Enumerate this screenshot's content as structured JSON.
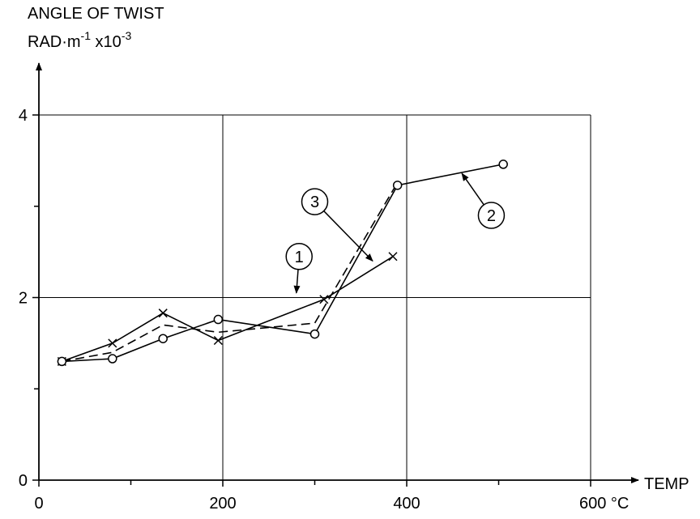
{
  "chart_data": {
    "type": "line",
    "ylabel_line1": "ANGLE OF TWIST",
    "ylabel_unit_base": "RAD·m",
    "ylabel_unit_exp": "-1",
    "ylabel_unit_mult": " x10",
    "ylabel_unit_mult_exp": "-3",
    "xlabel": "TEMP",
    "xlim": [
      0,
      600
    ],
    "ylim": [
      0,
      4
    ],
    "x_ticks": [
      {
        "value": 0,
        "label": "0"
      },
      {
        "value": 200,
        "label": "200"
      },
      {
        "value": 400,
        "label": "400"
      },
      {
        "value": 600,
        "label": "600 °C"
      }
    ],
    "y_ticks": [
      {
        "value": 0,
        "label": "0"
      },
      {
        "value": 2,
        "label": "2"
      },
      {
        "value": 4,
        "label": "4"
      }
    ],
    "grid": true,
    "series": [
      {
        "name": "1",
        "marker": "x",
        "dash": "solid",
        "points": [
          [
            25,
            1.3
          ],
          [
            80,
            1.5
          ],
          [
            135,
            1.83
          ],
          [
            195,
            1.53
          ],
          [
            310,
            1.98
          ],
          [
            385,
            2.45
          ]
        ]
      },
      {
        "name": "2",
        "marker": "o",
        "dash": "solid",
        "points": [
          [
            25,
            1.3
          ],
          [
            80,
            1.33
          ],
          [
            135,
            1.55
          ],
          [
            195,
            1.76
          ],
          [
            300,
            1.6
          ],
          [
            390,
            3.23
          ],
          [
            505,
            3.46
          ]
        ]
      },
      {
        "name": "3",
        "marker": "none",
        "dash": "dashed",
        "points": [
          [
            25,
            1.3
          ],
          [
            80,
            1.4
          ],
          [
            135,
            1.7
          ],
          [
            195,
            1.62
          ],
          [
            300,
            1.72
          ],
          [
            390,
            3.26
          ]
        ]
      }
    ],
    "callouts": [
      {
        "label": "1",
        "circle": [
          283,
          2.45
        ],
        "arrow_to": [
          280,
          2.05
        ]
      },
      {
        "label": "2",
        "circle": [
          492,
          2.9
        ],
        "arrow_to": [
          460,
          3.36
        ]
      },
      {
        "label": "3",
        "circle": [
          300,
          3.05
        ],
        "arrow_to": [
          363,
          2.4
        ]
      }
    ]
  }
}
